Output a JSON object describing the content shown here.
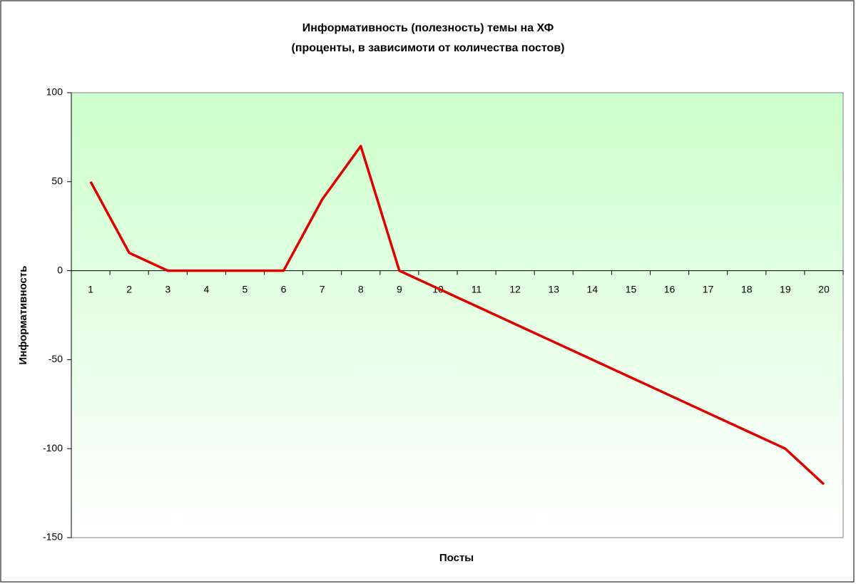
{
  "chart_data": {
    "type": "line",
    "title": "Информативность (полезность) темы на ХФ",
    "subtitle": "(проценты, в зависимоти от количества постов)",
    "x_label": "Посты",
    "y_label": "Информативность",
    "categories": [
      "1",
      "2",
      "3",
      "4",
      "5",
      "6",
      "7",
      "8",
      "9",
      "10",
      "11",
      "12",
      "13",
      "14",
      "15",
      "16",
      "17",
      "18",
      "19",
      "20"
    ],
    "series": [
      {
        "color": "#e00000",
        "values": [
          50,
          10,
          0,
          0,
          0,
          0,
          40,
          70,
          0,
          -10,
          -20,
          -30,
          -40,
          -50,
          -60,
          -70,
          -80,
          -90,
          -100,
          -120
        ]
      }
    ],
    "ylim": [
      -150,
      100
    ],
    "yticks": [
      -150,
      -100,
      -50,
      0,
      50,
      100
    ],
    "grid": false
  }
}
